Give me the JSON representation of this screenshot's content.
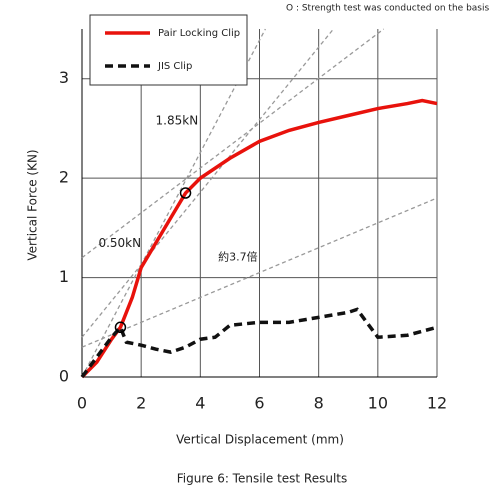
{
  "chart_data": {
    "type": "line",
    "title": "Figure 6: Tensile test Results",
    "xlabel": "Vertical Displacement (mm)",
    "ylabel": "Vertical Force (KN)",
    "note": "O : Strength test was conducted on the basis of technical standards",
    "xlim": [
      0,
      12
    ],
    "ylim": [
      0,
      3.5
    ],
    "xticks": [
      0,
      2,
      4,
      6,
      8,
      10,
      12
    ],
    "yticks": [
      0,
      1,
      2,
      3
    ],
    "grid": true,
    "series": [
      {
        "name": "Pair Locking Clip",
        "color": "#e8120c",
        "dash": false,
        "x": [
          0,
          0.5,
          1,
          1.3,
          1.7,
          2,
          2.5,
          3,
          3.5,
          4,
          5,
          6,
          7,
          8,
          9,
          10,
          11,
          11.5,
          12
        ],
        "values": [
          0,
          0.15,
          0.38,
          0.5,
          0.8,
          1.1,
          1.35,
          1.6,
          1.85,
          2.0,
          2.2,
          2.37,
          2.48,
          2.56,
          2.63,
          2.7,
          2.75,
          2.78,
          2.75
        ]
      },
      {
        "name": "JIS Clip",
        "color": "#111111",
        "dash": true,
        "x": [
          0,
          0.5,
          1,
          1.3,
          1.5,
          2,
          2.5,
          3,
          3.5,
          4,
          4.5,
          5,
          6,
          7,
          8,
          9,
          9.3,
          10,
          11,
          12
        ],
        "values": [
          0,
          0.2,
          0.4,
          0.5,
          0.35,
          0.32,
          0.28,
          0.25,
          0.3,
          0.38,
          0.4,
          0.52,
          0.55,
          0.55,
          0.6,
          0.65,
          0.68,
          0.4,
          0.42,
          0.5
        ]
      }
    ],
    "reference_lines": [
      {
        "x": [
          0,
          12
        ],
        "y": [
          0.3,
          1.8
        ]
      },
      {
        "x": [
          0,
          10.2
        ],
        "y": [
          1.2,
          3.5
        ]
      },
      {
        "x": [
          0,
          6.2
        ],
        "y": [
          0,
          3.5
        ]
      },
      {
        "x": [
          0,
          8.5
        ],
        "y": [
          0.4,
          3.5
        ]
      }
    ],
    "annotations": [
      {
        "text": "1.85kN",
        "x": 3.5,
        "y": 1.85
      },
      {
        "text": "0.50kN",
        "x": 1.3,
        "y": 0.5
      },
      {
        "text": "約3.7倍",
        "x": 4.6,
        "y": 1.2
      }
    ]
  }
}
